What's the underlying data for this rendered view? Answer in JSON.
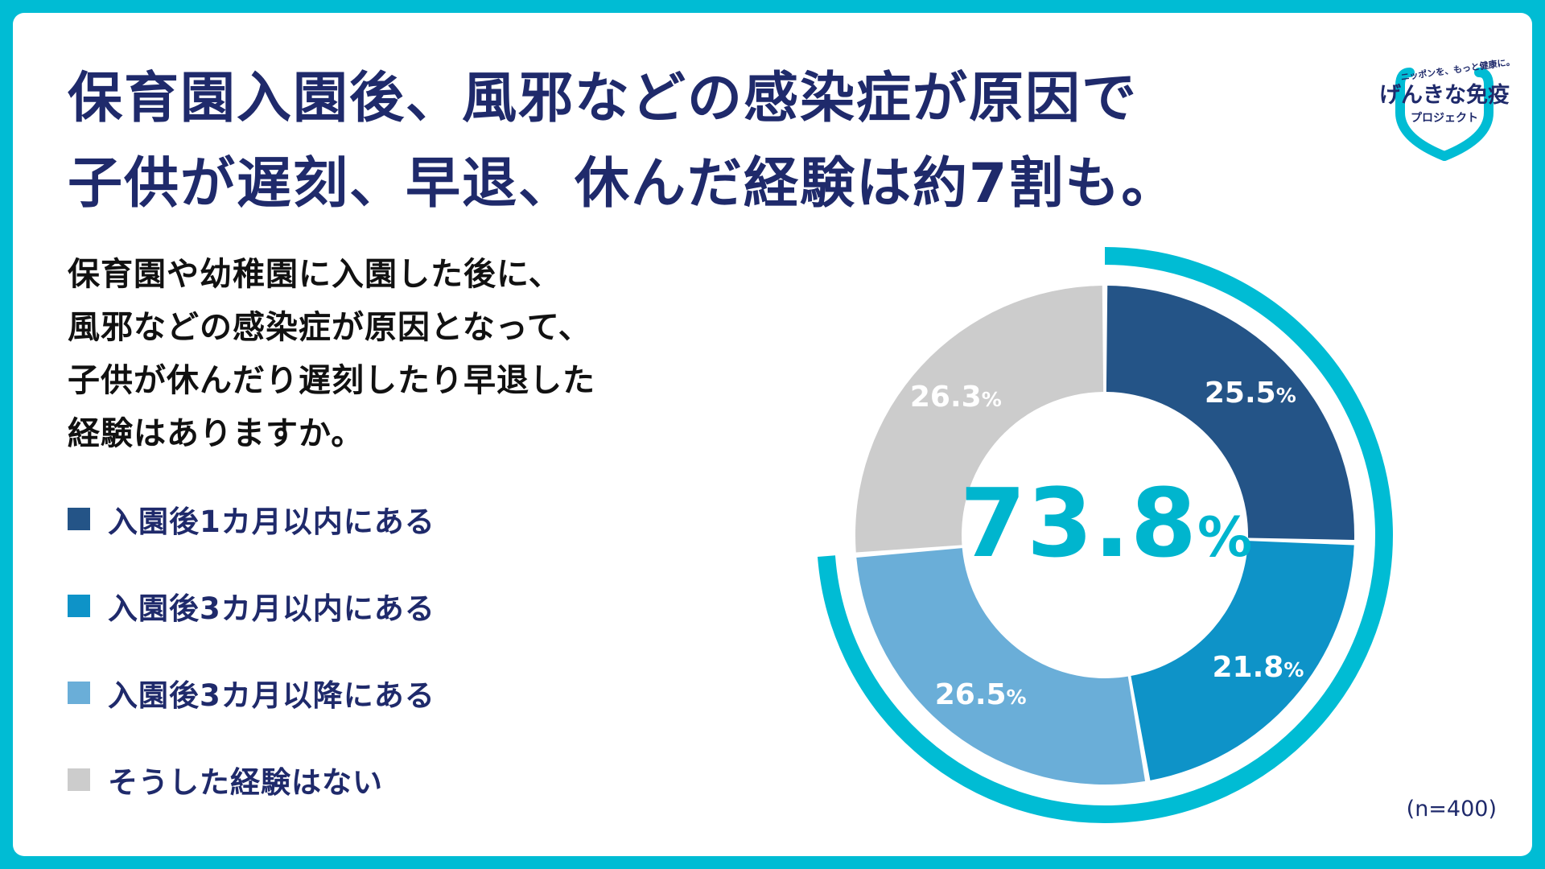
{
  "headline": {
    "line1": "保育園入園後、風邪などの感染症が原因で",
    "line2": "子供が遅刻、早退、休んだ経験は約7割も。"
  },
  "question": {
    "lines": [
      "保育園や幼稚園に入園した後に、",
      "風邪などの感染症が原因となって、",
      "子供が休んだり遅刻したり早退した",
      "経験はありますか。"
    ]
  },
  "logo": {
    "tagline": "ニッポンを、もっと健康に。",
    "name": "げんきな免疫",
    "sub": "プロジェクト"
  },
  "colors": {
    "background": "#00bcd4",
    "title": "#1f2a6b",
    "accent": "#00b5ce",
    "outer_ring": "#00bcd4"
  },
  "chart_data": {
    "type": "pie",
    "style": "donut",
    "categories": [
      "入園後1カ月以内にある",
      "入園後3カ月以内にある",
      "入園後3カ月以降にある",
      "そうした経験はない"
    ],
    "values": [
      25.5,
      21.8,
      26.5,
      26.3
    ],
    "unit": "%",
    "colors": [
      "#245487",
      "#0e93c8",
      "#6aaed8",
      "#cccccc"
    ],
    "center_label": "73.8",
    "center_unit": "%",
    "highlight_total": 73.8,
    "legend_position": "left",
    "sample_note": "(n=400)"
  }
}
